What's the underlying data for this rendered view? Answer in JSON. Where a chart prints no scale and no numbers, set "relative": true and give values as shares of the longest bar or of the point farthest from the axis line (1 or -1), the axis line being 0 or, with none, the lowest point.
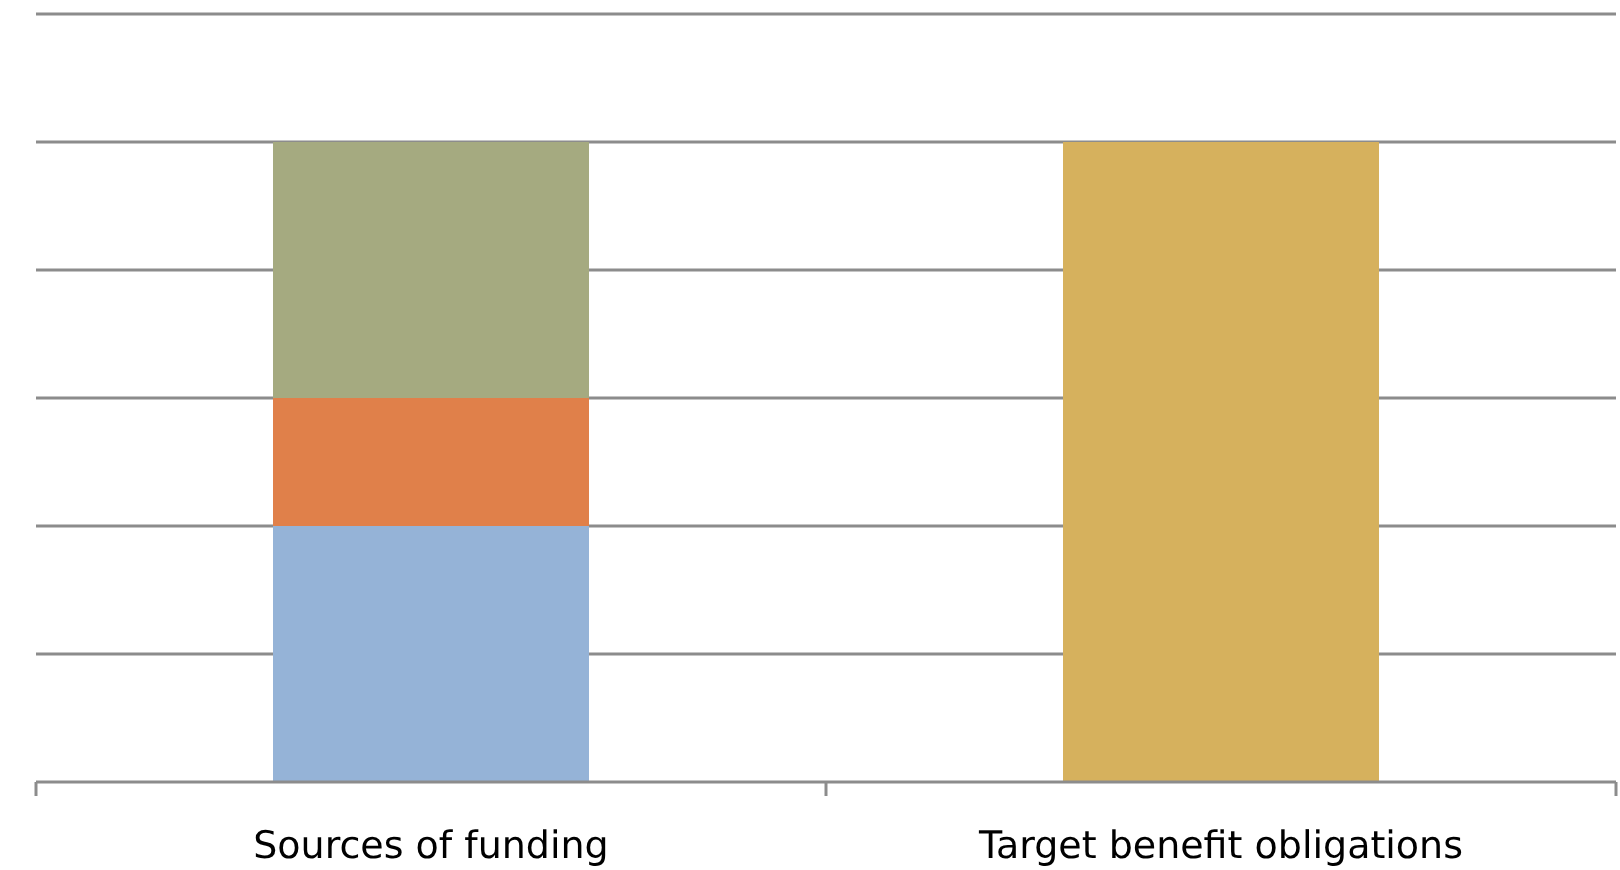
{
  "chart_data": {
    "type": "bar",
    "stacked": true,
    "relative": true,
    "grid": true,
    "categories": [
      "Sources of funding",
      "Target benefit obligations"
    ],
    "series": [
      {
        "color": "#95b3d7",
        "values": [
          0.4,
          null
        ]
      },
      {
        "color": "#e0804a",
        "values": [
          0.2,
          null
        ]
      },
      {
        "color": "#a5aa80",
        "values": [
          0.4,
          null
        ]
      },
      {
        "color": "#d6b15d",
        "values": [
          null,
          1.0
        ]
      }
    ]
  }
}
